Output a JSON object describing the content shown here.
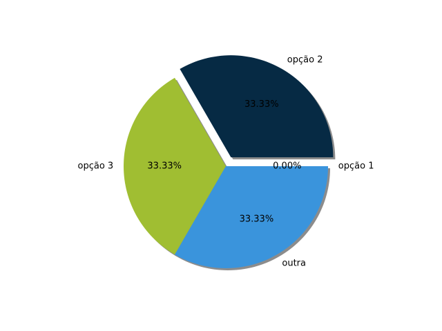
{
  "chart_data": {
    "type": "pie",
    "categories": [
      "opção 1",
      "opção 2",
      "opção 3",
      "outra"
    ],
    "values": [
      0,
      33.33,
      33.33,
      33.33
    ],
    "percent_labels": [
      "0.00%",
      "33.33%",
      "33.33%",
      "33.33%"
    ],
    "colors": [
      "#3a94dc",
      "#062a44",
      "#a0be32",
      "#3a94dc"
    ],
    "exploded": [
      "opção 2"
    ],
    "shadow": true,
    "start_angle_deg": 0,
    "direction": "counterclockwise",
    "legend": "none"
  }
}
